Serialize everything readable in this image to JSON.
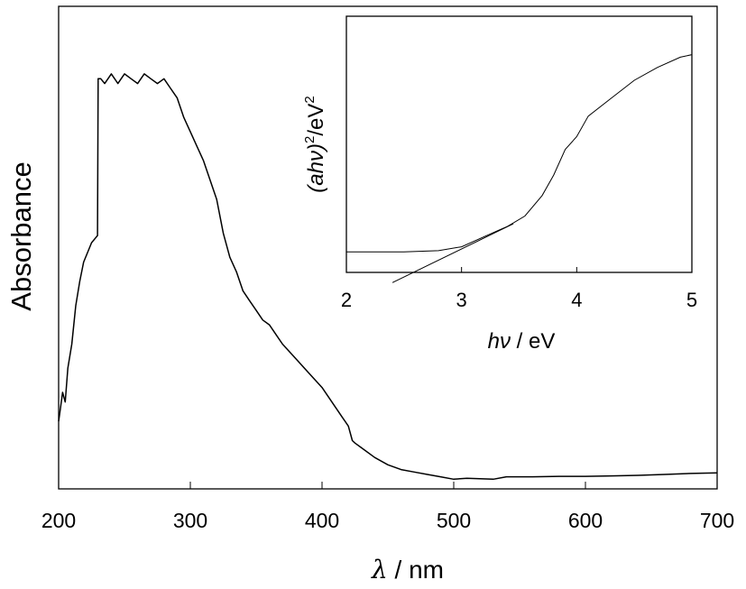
{
  "chart_data": [
    {
      "type": "line",
      "xlabel_symbol": "λ",
      "xlabel_unit": " / nm",
      "ylabel": "Absorbance",
      "xlim": [
        200,
        700
      ],
      "x_ticks": [
        "200",
        "300",
        "400",
        "500",
        "600",
        "700"
      ],
      "y_ticks_labeled": false,
      "ylim": [
        0,
        1.0
      ],
      "series": [
        {
          "x": [
            200,
            201,
            203,
            205,
            207,
            210,
            213,
            216,
            219,
            222,
            225,
            228,
            229.5,
            230,
            232,
            235,
            240,
            245,
            250,
            255,
            260,
            265,
            270,
            275,
            280,
            285,
            290,
            295,
            300,
            305,
            310,
            315,
            320,
            325,
            330,
            335,
            340,
            345,
            350,
            355,
            360,
            365,
            370,
            380,
            390,
            400,
            410,
            415,
            420,
            423,
            425,
            430,
            440,
            450,
            460,
            470,
            480,
            490,
            500,
            510,
            520,
            530,
            540,
            550,
            560,
            580,
            600,
            620,
            640,
            660,
            680,
            700
          ],
          "y": [
            0.14,
            0.16,
            0.2,
            0.18,
            0.25,
            0.3,
            0.38,
            0.43,
            0.47,
            0.49,
            0.51,
            0.52,
            0.525,
            0.85,
            0.85,
            0.84,
            0.86,
            0.84,
            0.86,
            0.85,
            0.84,
            0.86,
            0.85,
            0.84,
            0.85,
            0.83,
            0.81,
            0.77,
            0.74,
            0.71,
            0.68,
            0.64,
            0.6,
            0.53,
            0.48,
            0.45,
            0.41,
            0.39,
            0.37,
            0.35,
            0.34,
            0.32,
            0.3,
            0.27,
            0.24,
            0.21,
            0.17,
            0.15,
            0.13,
            0.1,
            0.095,
            0.085,
            0.065,
            0.05,
            0.04,
            0.035,
            0.03,
            0.025,
            0.02,
            0.022,
            0.021,
            0.02,
            0.025,
            0.025,
            0.025,
            0.026,
            0.026,
            0.027,
            0.028,
            0.03,
            0.032,
            0.033
          ]
        }
      ]
    },
    {
      "type": "line",
      "note_inset": true,
      "xlabel_symbol": "hν",
      "xlabel_unit": " / eV",
      "ylabel_base": "(ahν)",
      "ylabel_exp1": "2",
      "ylabel_unit": "/eV",
      "ylabel_exp2": "2",
      "xlim": [
        2,
        5
      ],
      "x_ticks": [
        "2",
        "3",
        "4",
        "5"
      ],
      "y_ticks_labeled": false,
      "ylim": [
        0,
        1.0
      ],
      "series": [
        {
          "x": [
            2.0,
            2.5,
            2.8,
            3.0,
            3.2,
            3.4,
            3.55,
            3.7,
            3.8,
            3.9,
            4.0,
            4.1,
            4.3,
            4.5,
            4.7,
            4.9,
            5.0
          ],
          "y": [
            0.08,
            0.08,
            0.085,
            0.1,
            0.14,
            0.18,
            0.22,
            0.3,
            0.38,
            0.48,
            0.53,
            0.61,
            0.68,
            0.75,
            0.8,
            0.84,
            0.85
          ]
        },
        {
          "x": [
            2.4,
            3.45
          ],
          "y": [
            -0.04,
            0.19
          ]
        }
      ]
    }
  ]
}
